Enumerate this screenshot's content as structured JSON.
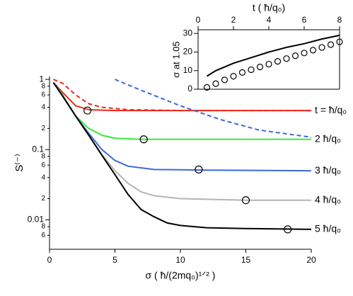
{
  "chart_data": [
    {
      "type": "line",
      "y_scale": "log",
      "xlabel": "σ ( ħ/(2mq₀)¹ᐟ² )",
      "ylabel": "S⁽⁻⁾",
      "xlim": [
        0,
        20
      ],
      "xticks": [
        0,
        5,
        10,
        15,
        20
      ],
      "ylim": [
        0.0038,
        1.1
      ],
      "yticks": [
        1,
        {
          "value": 0.8,
          "label": "8"
        },
        {
          "value": 0.6,
          "label": "6"
        },
        {
          "value": 0.4,
          "label": "4"
        },
        {
          "value": 0.2,
          "label": "2"
        },
        0.1,
        {
          "value": 0.08,
          "label": "8"
        },
        {
          "value": 0.06,
          "label": "6"
        },
        {
          "value": 0.04,
          "label": "4"
        },
        {
          "value": 0.02,
          "label": "2"
        },
        0.01,
        {
          "value": 0.008,
          "label": "8"
        },
        {
          "value": 0.006,
          "label": "6"
        }
      ],
      "series": [
        {
          "name": "t = ħ/q₀",
          "color": "#e8291c",
          "x": [
            0.3,
            1,
            2,
            3,
            5,
            10,
            15,
            20
          ],
          "values": [
            0.9,
            0.65,
            0.42,
            0.37,
            0.36,
            0.36,
            0.36,
            0.36
          ]
        },
        {
          "name": "2 ħ/q₀",
          "color": "#3ee83a",
          "x": [
            0.3,
            1,
            2,
            3,
            4,
            5,
            7,
            10,
            20
          ],
          "values": [
            0.9,
            0.6,
            0.3,
            0.2,
            0.16,
            0.145,
            0.14,
            0.14,
            0.14
          ]
        },
        {
          "name": "3 ħ/q₀",
          "color": "#3a6ad8",
          "x": [
            0.3,
            1,
            2,
            3,
            4,
            5,
            6,
            8,
            12,
            20
          ],
          "values": [
            0.9,
            0.58,
            0.3,
            0.17,
            0.1,
            0.07,
            0.058,
            0.052,
            0.051,
            0.05
          ]
        },
        {
          "name": "4 ħ/q₀",
          "color": "#b4b4b4",
          "x": [
            0.3,
            1,
            2,
            3,
            4,
            5,
            6,
            7,
            8,
            10,
            15,
            20
          ],
          "values": [
            0.9,
            0.58,
            0.3,
            0.16,
            0.085,
            0.05,
            0.033,
            0.025,
            0.022,
            0.02,
            0.019,
            0.019
          ]
        },
        {
          "name": "5 ħ/q₀",
          "color": "#000000",
          "x": [
            0.3,
            1,
            2,
            3,
            4,
            5,
            6,
            7,
            8,
            9,
            10,
            12,
            15,
            20
          ],
          "values": [
            0.9,
            0.58,
            0.3,
            0.16,
            0.083,
            0.044,
            0.023,
            0.014,
            0.011,
            0.009,
            0.0083,
            0.0077,
            0.0075,
            0.0073
          ]
        },
        {
          "color": "#e8291c",
          "dash": true,
          "x": [
            0.3,
            1,
            2,
            3,
            4,
            6,
            10,
            20
          ],
          "values": [
            1.0,
            0.88,
            0.6,
            0.45,
            0.4,
            0.37,
            0.36,
            0.36
          ]
        },
        {
          "color": "#3a6ad8",
          "dash": true,
          "x": [
            5,
            7,
            10,
            13,
            16,
            20
          ],
          "values": [
            1.0,
            0.7,
            0.42,
            0.27,
            0.19,
            0.15
          ]
        },
        {
          "color": "#000000",
          "marker": "circle",
          "x": [
            2.9,
            7.2,
            11.4,
            15,
            18.2
          ],
          "values": [
            0.36,
            0.14,
            0.052,
            0.019,
            0.0073
          ]
        }
      ]
    },
    {
      "type": "line",
      "xaxis_position": "top",
      "box": true,
      "xlabel": "t ( ħ/q₀)",
      "ylabel": "σ at 1.05",
      "xlim": [
        0,
        8
      ],
      "xticks": [
        0,
        2,
        4,
        6,
        8
      ],
      "ylim": [
        0,
        32
      ],
      "yticks": [
        0,
        10,
        20,
        30
      ],
      "series": [
        {
          "color": "#000000",
          "x": [
            0.5,
            1,
            2,
            3,
            4,
            5,
            6,
            7,
            8
          ],
          "values": [
            7,
            10,
            14,
            17,
            20,
            22.5,
            24.5,
            27,
            29
          ]
        },
        {
          "color": "#000000",
          "marker": "circle",
          "x": [
            0.5,
            1,
            1.5,
            2,
            2.5,
            3,
            3.5,
            4,
            4.5,
            5,
            5.5,
            6,
            6.5,
            7,
            7.5,
            8
          ],
          "values": [
            1,
            3,
            5,
            7,
            9,
            10.5,
            12,
            13.5,
            15,
            16.5,
            18,
            19.5,
            21,
            22.5,
            24,
            25.5
          ]
        }
      ]
    }
  ]
}
